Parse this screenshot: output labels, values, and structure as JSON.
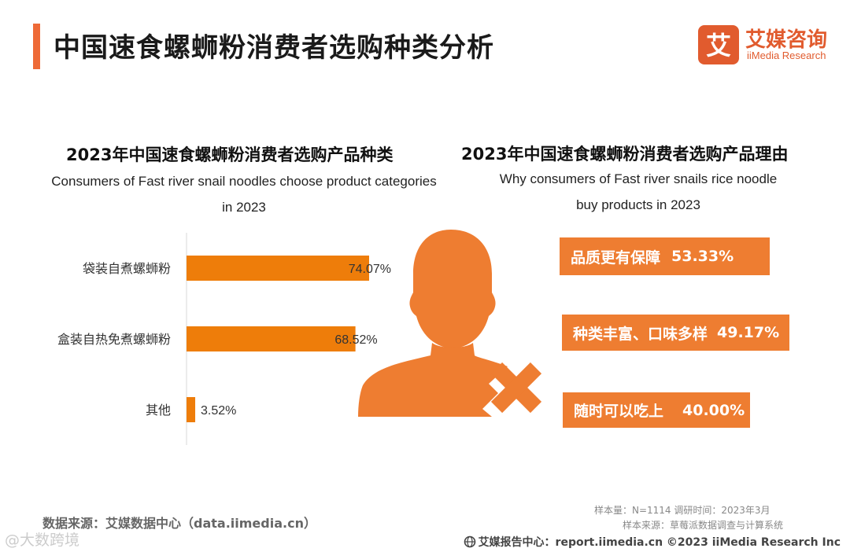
{
  "header": {
    "title": "中国速食螺蛳粉消费者选购种类分析",
    "logo_cn": "艾媒咨询",
    "logo_en": "iiMedia Research",
    "logo_glyph": "艾"
  },
  "left_section": {
    "title": "2023年中国速食螺蛳粉消费者选购产品种类",
    "subtitle_line1": "Consumers of Fast river snail noodles choose product categories",
    "subtitle_line2": "in 2023"
  },
  "chart_data": {
    "type": "bar",
    "orientation": "horizontal",
    "title": "2023年中国速食螺蛳粉消费者选购产品种类",
    "subtitle": "Consumers of Fast river snail noodles choose product categories in 2023",
    "categories": [
      "袋装自煮螺蛳粉",
      "盒装自热免煮螺蛳粉",
      "其他"
    ],
    "values": [
      74.07,
      68.52,
      3.52
    ],
    "value_labels": [
      "74.07%",
      "68.52%",
      "3.52%"
    ],
    "unit": "%",
    "xlim": [
      0,
      100
    ],
    "color": "#ee7d0a"
  },
  "right_section": {
    "title": "2023年中国速食螺蛳粉消费者选购产品理由",
    "subtitle_line1": "Why consumers of Fast river snails rice noodle",
    "subtitle_line2": "buy products in 2023",
    "reasons": [
      {
        "label": "品质更有保障",
        "value": 53.33,
        "text": "53.33%"
      },
      {
        "label": "种类丰富、口味多样",
        "value": 49.17,
        "text": "49.17%"
      },
      {
        "label": "随时可以吃上",
        "value": 40.0,
        "text": "40.00%"
      }
    ]
  },
  "footnotes": {
    "sample": "样本量：N=1114      调研时间：2023年3月",
    "source_sample": "样本来源：草莓派数据调查与计算系统"
  },
  "source": "数据来源：艾媒数据中心（data.iimedia.cn）",
  "footer": "艾媒报告中心：report.iimedia.cn   ©2023  iiMedia Research  Inc",
  "watermark": "@大数跨境",
  "colors": {
    "accent": "#ee6a37",
    "bar": "#ee7d0a",
    "reason_bg": "#ee7d31",
    "person": "#ee7d31"
  }
}
